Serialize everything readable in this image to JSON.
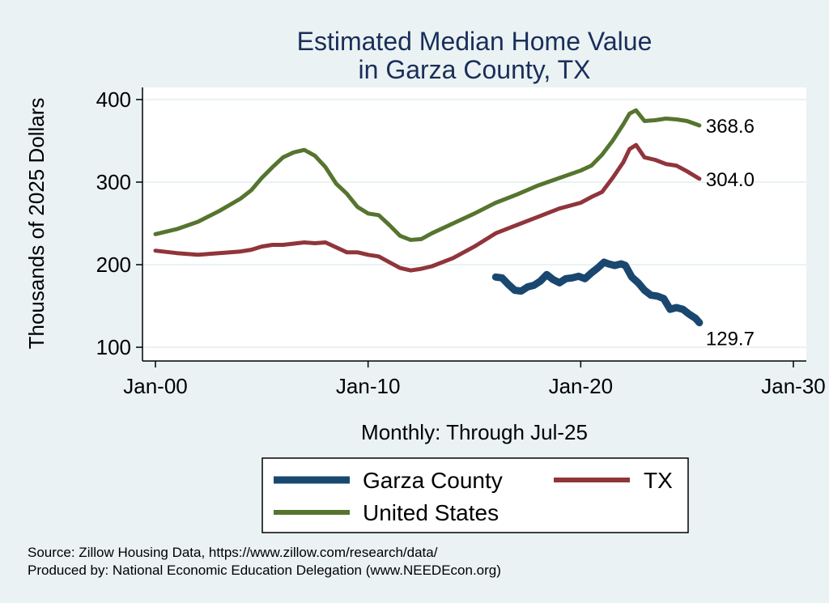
{
  "chart_data": {
    "type": "line",
    "title": [
      "Estimated Median Home Value",
      "in Garza County, TX"
    ],
    "xlabel": "Monthly: Through Jul-25",
    "ylabel": "Thousands of 2025 Dollars",
    "xlim": [
      2000,
      2030
    ],
    "ylim": [
      100,
      400
    ],
    "x_ticks": [
      {
        "value": 2000,
        "label": "Jan-00"
      },
      {
        "value": 2010,
        "label": "Jan-10"
      },
      {
        "value": 2020,
        "label": "Jan-20"
      },
      {
        "value": 2030,
        "label": "Jan-30"
      }
    ],
    "y_ticks": [
      100,
      200,
      300,
      400
    ],
    "grid": true,
    "legend_position": "bottom",
    "series": [
      {
        "name": "Garza County",
        "color": "#1a476f",
        "end_label": "129.7",
        "points": [
          [
            2016.0,
            185
          ],
          [
            2016.3,
            184
          ],
          [
            2016.6,
            176
          ],
          [
            2016.9,
            169
          ],
          [
            2017.2,
            168
          ],
          [
            2017.5,
            173
          ],
          [
            2017.8,
            175
          ],
          [
            2018.1,
            180
          ],
          [
            2018.4,
            188
          ],
          [
            2018.7,
            182
          ],
          [
            2019.0,
            178
          ],
          [
            2019.3,
            183
          ],
          [
            2019.6,
            184
          ],
          [
            2019.9,
            186
          ],
          [
            2020.2,
            183
          ],
          [
            2020.5,
            190
          ],
          [
            2020.8,
            196
          ],
          [
            2021.1,
            203
          ],
          [
            2021.3,
            201
          ],
          [
            2021.6,
            199
          ],
          [
            2021.9,
            201
          ],
          [
            2022.1,
            199
          ],
          [
            2022.4,
            185
          ],
          [
            2022.7,
            178
          ],
          [
            2023.0,
            169
          ],
          [
            2023.3,
            163
          ],
          [
            2023.6,
            162
          ],
          [
            2023.9,
            159
          ],
          [
            2024.2,
            146
          ],
          [
            2024.5,
            148
          ],
          [
            2024.8,
            146
          ],
          [
            2025.1,
            140
          ],
          [
            2025.4,
            135
          ],
          [
            2025.58,
            129.7
          ]
        ]
      },
      {
        "name": "TX",
        "color": "#90353b",
        "end_label": "304.0",
        "points": [
          [
            2000.0,
            217
          ],
          [
            2001.0,
            214
          ],
          [
            2002.0,
            212
          ],
          [
            2003.0,
            214
          ],
          [
            2004.0,
            216
          ],
          [
            2004.5,
            218
          ],
          [
            2005.0,
            222
          ],
          [
            2005.5,
            224
          ],
          [
            2006.0,
            224
          ],
          [
            2007.0,
            227
          ],
          [
            2007.5,
            226
          ],
          [
            2008.0,
            227
          ],
          [
            2008.5,
            221
          ],
          [
            2009.0,
            215
          ],
          [
            2009.5,
            215
          ],
          [
            2010.0,
            212
          ],
          [
            2010.5,
            210
          ],
          [
            2011.0,
            203
          ],
          [
            2011.5,
            196
          ],
          [
            2012.0,
            193
          ],
          [
            2012.5,
            195
          ],
          [
            2013.0,
            198
          ],
          [
            2014.0,
            208
          ],
          [
            2015.0,
            222
          ],
          [
            2016.0,
            238
          ],
          [
            2017.0,
            248
          ],
          [
            2018.0,
            258
          ],
          [
            2019.0,
            268
          ],
          [
            2020.0,
            275
          ],
          [
            2020.5,
            282
          ],
          [
            2021.0,
            288
          ],
          [
            2021.5,
            305
          ],
          [
            2022.0,
            324
          ],
          [
            2022.3,
            340
          ],
          [
            2022.6,
            345
          ],
          [
            2023.0,
            330
          ],
          [
            2023.5,
            327
          ],
          [
            2024.0,
            322
          ],
          [
            2024.5,
            320
          ],
          [
            2025.0,
            313
          ],
          [
            2025.58,
            304.0
          ]
        ]
      },
      {
        "name": "United States",
        "color": "#55752f",
        "end_label": "368.6",
        "points": [
          [
            2000.0,
            237
          ],
          [
            2001.0,
            243
          ],
          [
            2002.0,
            252
          ],
          [
            2003.0,
            265
          ],
          [
            2004.0,
            280
          ],
          [
            2004.5,
            290
          ],
          [
            2005.0,
            305
          ],
          [
            2005.5,
            318
          ],
          [
            2006.0,
            330
          ],
          [
            2006.5,
            336
          ],
          [
            2007.0,
            339
          ],
          [
            2007.5,
            332
          ],
          [
            2008.0,
            318
          ],
          [
            2008.5,
            298
          ],
          [
            2009.0,
            286
          ],
          [
            2009.5,
            270
          ],
          [
            2010.0,
            262
          ],
          [
            2010.5,
            260
          ],
          [
            2011.0,
            248
          ],
          [
            2011.5,
            235
          ],
          [
            2012.0,
            230
          ],
          [
            2012.5,
            231
          ],
          [
            2013.0,
            238
          ],
          [
            2014.0,
            250
          ],
          [
            2015.0,
            262
          ],
          [
            2016.0,
            275
          ],
          [
            2017.0,
            285
          ],
          [
            2018.0,
            296
          ],
          [
            2019.0,
            305
          ],
          [
            2020.0,
            314
          ],
          [
            2020.5,
            320
          ],
          [
            2021.0,
            333
          ],
          [
            2021.5,
            350
          ],
          [
            2022.0,
            370
          ],
          [
            2022.3,
            383
          ],
          [
            2022.6,
            387
          ],
          [
            2023.0,
            374
          ],
          [
            2023.5,
            375
          ],
          [
            2024.0,
            377
          ],
          [
            2024.5,
            376
          ],
          [
            2025.0,
            374
          ],
          [
            2025.58,
            368.6
          ]
        ]
      }
    ]
  },
  "source_lines": [
    "Source: Zillow Housing Data, https://www.zillow.com/research/data/",
    "Produced by: National Economic Education Delegation (www.NEEDEcon.org)"
  ]
}
